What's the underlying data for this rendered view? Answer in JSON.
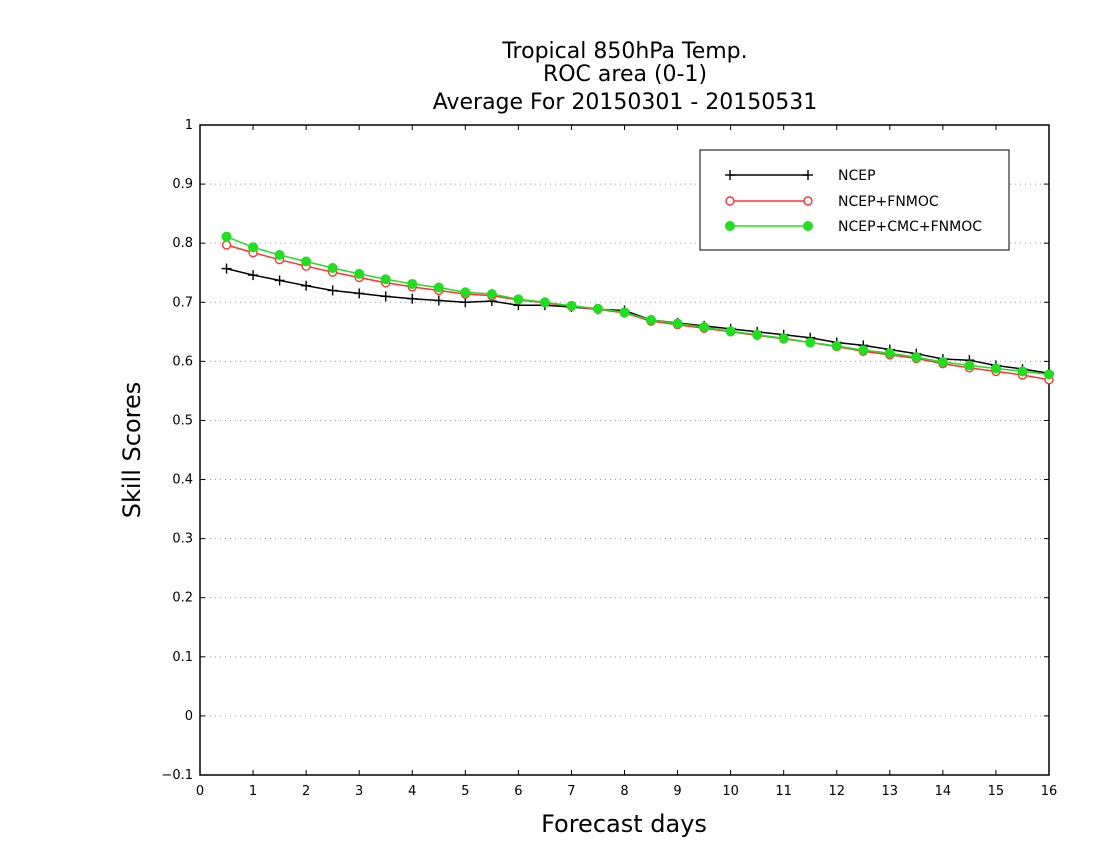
{
  "chart_data": {
    "type": "line",
    "title_lines": [
      "Tropical 850hPa Temp.",
      "ROC area (0-1)",
      "Average For 20150301 - 20150531"
    ],
    "xlabel": "Forecast days",
    "ylabel": "Skill Scores",
    "xlim": [
      0,
      16
    ],
    "ylim": [
      -0.1,
      1
    ],
    "x_ticks": [
      "0",
      "1",
      "2",
      "3",
      "4",
      "5",
      "6",
      "7",
      "8",
      "9",
      "10",
      "11",
      "12",
      "13",
      "14",
      "15",
      "16"
    ],
    "y_ticks": [
      "−0.1",
      "0",
      "0.1",
      "0.2",
      "0.3",
      "0.4",
      "0.5",
      "0.6",
      "0.7",
      "0.8",
      "0.9",
      "1"
    ],
    "grid": "horizontal dotted",
    "legend_position": "top-right",
    "x": [
      0.5,
      1,
      1.5,
      2,
      2.5,
      3,
      3.5,
      4,
      4.5,
      5,
      5.5,
      6,
      6.5,
      7,
      7.5,
      8,
      8.5,
      9,
      9.5,
      10,
      10.5,
      11,
      11.5,
      12,
      12.5,
      13,
      13.5,
      14,
      14.5,
      15,
      15.5,
      16
    ],
    "series": [
      {
        "name": "NCEP",
        "color": "#000000",
        "marker": "plus",
        "values": [
          0.757,
          0.746,
          0.737,
          0.728,
          0.72,
          0.715,
          0.71,
          0.706,
          0.703,
          0.7,
          0.702,
          0.695,
          0.695,
          0.692,
          0.688,
          0.686,
          0.67,
          0.665,
          0.66,
          0.655,
          0.65,
          0.645,
          0.64,
          0.632,
          0.627,
          0.62,
          0.613,
          0.604,
          0.602,
          0.593,
          0.587,
          0.58
        ]
      },
      {
        "name": "NCEP+FNMOC",
        "color": "#ff3333",
        "marker": "open-circle",
        "values": [
          0.797,
          0.784,
          0.772,
          0.761,
          0.751,
          0.742,
          0.733,
          0.726,
          0.72,
          0.714,
          0.711,
          0.704,
          0.699,
          0.693,
          0.688,
          0.682,
          0.668,
          0.662,
          0.656,
          0.65,
          0.644,
          0.638,
          0.632,
          0.625,
          0.617,
          0.611,
          0.605,
          0.596,
          0.589,
          0.583,
          0.577,
          0.569
        ]
      },
      {
        "name": "NCEP+CMC+FNMOC",
        "color": "#22dd22",
        "marker": "filled-circle",
        "values": [
          0.811,
          0.793,
          0.78,
          0.769,
          0.758,
          0.748,
          0.739,
          0.731,
          0.725,
          0.717,
          0.714,
          0.705,
          0.7,
          0.694,
          0.689,
          0.683,
          0.67,
          0.664,
          0.658,
          0.651,
          0.645,
          0.639,
          0.632,
          0.626,
          0.619,
          0.614,
          0.607,
          0.599,
          0.593,
          0.588,
          0.583,
          0.578
        ]
      }
    ]
  }
}
